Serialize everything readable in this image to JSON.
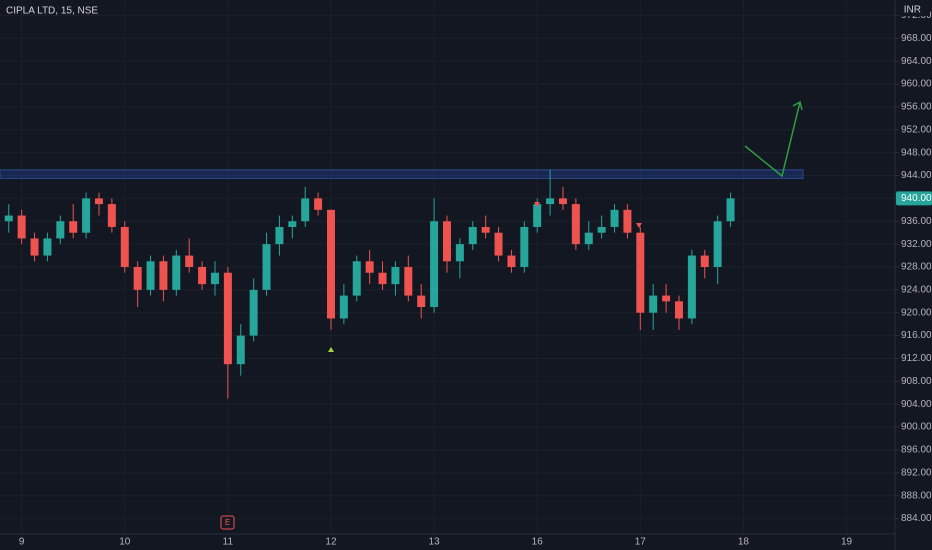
{
  "chart_data": {
    "type": "candlestick",
    "title": "CIPLA LTD, 15, NSE",
    "currency": "INR",
    "earnings_label": "E",
    "x": [
      -0.125,
      0,
      0.125,
      0.25,
      0.375,
      0.5,
      0.625,
      0.75,
      0.875,
      1,
      1.125,
      1.25,
      1.375,
      1.5,
      1.625,
      1.75,
      1.875,
      2,
      2.125,
      2.25,
      2.375,
      2.5,
      2.625,
      2.75,
      2.875,
      3,
      3.125,
      3.25,
      3.375,
      3.5,
      3.625,
      3.75,
      3.875,
      4,
      4.125,
      4.25,
      4.375,
      4.5,
      4.625,
      4.75,
      4.875,
      5,
      5.125,
      5.25,
      5.375,
      5.5,
      5.625,
      5.75,
      5.875,
      6,
      6.125,
      6.25,
      6.375,
      6.5,
      6.625,
      6.75,
      6.875
    ],
    "open": [
      936,
      937,
      933,
      930,
      933,
      936,
      934,
      940,
      939,
      935,
      928,
      924,
      929,
      924,
      930,
      928,
      925,
      927,
      911,
      916,
      924,
      932,
      935,
      936,
      940,
      938,
      919,
      923,
      929,
      927,
      925,
      928,
      923,
      921,
      936,
      929,
      932,
      935,
      934,
      930,
      928,
      935,
      939,
      940,
      939,
      932,
      934,
      935,
      938,
      934,
      920,
      923,
      922,
      919,
      930,
      928,
      936
    ],
    "high": [
      939,
      938,
      934,
      934,
      937,
      939,
      941,
      941,
      940,
      936,
      929,
      930,
      930,
      931,
      933,
      929,
      929,
      928,
      918,
      926,
      934,
      937,
      937,
      942,
      941,
      938,
      925,
      930,
      931,
      929,
      929,
      930,
      925,
      940,
      937,
      933,
      936,
      937,
      935,
      931,
      936,
      940,
      945,
      942,
      940,
      936,
      937,
      939,
      939,
      935,
      925,
      925,
      923,
      931,
      931,
      937,
      941
    ],
    "low": [
      934,
      932,
      929,
      929,
      932,
      933,
      933,
      937,
      934,
      927,
      921,
      923,
      922,
      923,
      927,
      924,
      923,
      905,
      909,
      915,
      923,
      930,
      933,
      935,
      937,
      917,
      918,
      922,
      925,
      924,
      923,
      922,
      919,
      920,
      927,
      926,
      931,
      933,
      929,
      927,
      927,
      934,
      937,
      938,
      931,
      931,
      933,
      934,
      933,
      917,
      917,
      920,
      917,
      918,
      926,
      925,
      935
    ],
    "close": [
      937,
      933,
      930,
      933,
      936,
      934,
      940,
      939,
      935,
      928,
      924,
      929,
      924,
      930,
      928,
      925,
      927,
      911,
      916,
      924,
      932,
      935,
      936,
      940,
      938,
      919,
      923,
      929,
      927,
      925,
      928,
      923,
      921,
      936,
      929,
      932,
      935,
      934,
      930,
      928,
      935,
      939,
      940,
      939,
      932,
      934,
      935,
      938,
      934,
      920,
      923,
      922,
      919,
      930,
      928,
      936,
      940
    ],
    "up_color": "#26a69a",
    "down_color": "#ef5350",
    "zone": [
      943.5,
      945
    ],
    "last_price": {
      "value": 940,
      "label": "940.00"
    },
    "xlim": [
      -0.21,
      8.47
    ],
    "xticks": [
      {
        "value": 0,
        "label": "9"
      },
      {
        "value": 1,
        "label": "10"
      },
      {
        "value": 2,
        "label": "11"
      },
      {
        "value": 3,
        "label": "12"
      },
      {
        "value": 4,
        "label": "13"
      },
      {
        "value": 5,
        "label": "16"
      },
      {
        "value": 6,
        "label": "17"
      },
      {
        "value": 7,
        "label": "18"
      },
      {
        "value": 8,
        "label": "19"
      }
    ],
    "ylim": [
      881.3,
      974.7
    ],
    "yticks": [
      {
        "value": 884,
        "label": "884.00"
      },
      {
        "value": 888,
        "label": "888.00"
      },
      {
        "value": 892,
        "label": "892.00"
      },
      {
        "value": 896,
        "label": "896.00"
      },
      {
        "value": 900,
        "label": "900.00"
      },
      {
        "value": 904,
        "label": "904.00"
      },
      {
        "value": 908,
        "label": "908.00"
      },
      {
        "value": 912,
        "label": "912.00"
      },
      {
        "value": 916,
        "label": "916.00"
      },
      {
        "value": 920,
        "label": "920.00"
      },
      {
        "value": 924,
        "label": "924.00"
      },
      {
        "value": 928,
        "label": "928.00"
      },
      {
        "value": 932,
        "label": "932.00"
      },
      {
        "value": 936,
        "label": "936.00"
      },
      {
        "value": 940,
        "label": "940.00"
      },
      {
        "value": 944,
        "label": "944.00"
      },
      {
        "value": 948,
        "label": "948.00"
      },
      {
        "value": 952,
        "label": "952.00"
      },
      {
        "value": 956,
        "label": "956.00"
      },
      {
        "value": 960,
        "label": "960.00"
      },
      {
        "value": 964,
        "label": "964.00"
      },
      {
        "value": 968,
        "label": "968.00"
      },
      {
        "value": 972,
        "label": "972.00"
      }
    ],
    "grid": true
  }
}
